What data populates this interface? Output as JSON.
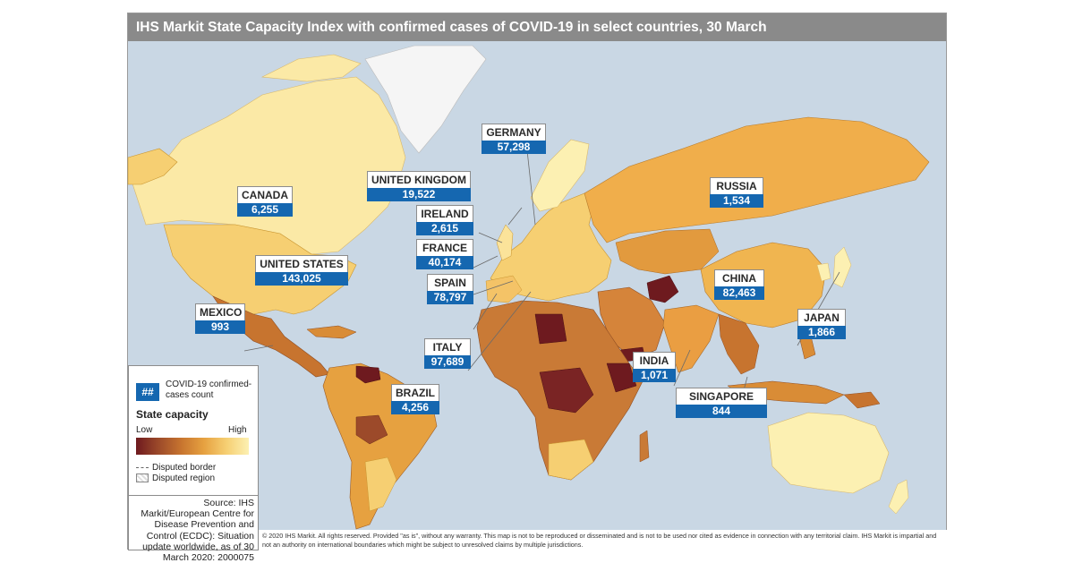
{
  "title": "IHS Markit State Capacity Index with confirmed cases of COVID-19 in select countries, 30 March",
  "colors": {
    "ocean": "#c9d7e4",
    "label_blue": "#1567b0",
    "title_bar": "#8a8a8a",
    "capacity_low": "#6e1a1f",
    "capacity_mid": "#e6a140",
    "capacity_high": "#fcf0b2",
    "greenland": "#f5f5f5"
  },
  "callouts": [
    {
      "name": "CANADA",
      "count": "6,255"
    },
    {
      "name": "UNITED STATES",
      "count": "143,025"
    },
    {
      "name": "MEXICO",
      "count": "993"
    },
    {
      "name": "UNITED KINGDOM",
      "count": "19,522"
    },
    {
      "name": "GERMANY",
      "count": "57,298"
    },
    {
      "name": "IRELAND",
      "count": "2,615"
    },
    {
      "name": "FRANCE",
      "count": "40,174"
    },
    {
      "name": "SPAIN",
      "count": "78,797"
    },
    {
      "name": "ITALY",
      "count": "97,689"
    },
    {
      "name": "BRAZIL",
      "count": "4,256"
    },
    {
      "name": "RUSSIA",
      "count": "1,534"
    },
    {
      "name": "CHINA",
      "count": "82,463"
    },
    {
      "name": "JAPAN",
      "count": "1,866"
    },
    {
      "name": "INDIA",
      "count": "1,071"
    },
    {
      "name": "SINGAPORE",
      "count": "844"
    }
  ],
  "legend": {
    "badge": "##",
    "badge_label": "COVID-19 confirmed-cases count",
    "state_capacity_title": "State capacity",
    "low": "Low",
    "high": "High",
    "disputed_border": "Disputed border",
    "disputed_region": "Disputed region"
  },
  "source": "Source: IHS Markit/European Centre for Disease Prevention and Control (ECDC): Situation update worldwide, as of 30 March 2020: 2000075",
  "footer": "© 2020 IHS Markit. All rights reserved. Provided \"as is\", without any warranty. This map is not to be reproduced or disseminated and is not to be used nor cited as evidence in connection with any territorial claim. IHS Markit is impartial and not an authority on international boundaries which might be subject to unresolved claims by multiple jurisdictions."
}
